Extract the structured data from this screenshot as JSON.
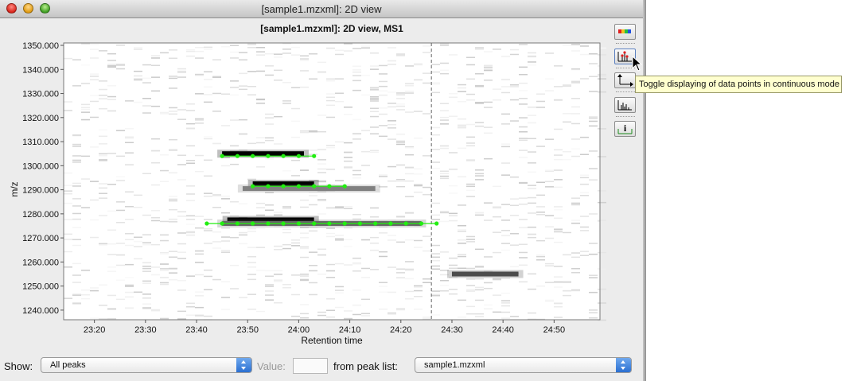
{
  "window": {
    "title": "[sample1.mzxml]: 2D view",
    "controls": [
      "close",
      "minimize",
      "zoom"
    ]
  },
  "plot": {
    "title": "[sample1.mzxml]: 2D view, MS1",
    "xlabel": "Retention time",
    "ylabel": "m/z",
    "y_ticks": [
      "1350.000",
      "1340.000",
      "1330.000",
      "1320.000",
      "1310.000",
      "1300.000",
      "1290.000",
      "1280.000",
      "1270.000",
      "1260.000",
      "1250.000",
      "1240.000"
    ],
    "x_ticks": [
      "23:20",
      "23:30",
      "23:40",
      "23:50",
      "24:00",
      "24:10",
      "24:20",
      "24:30",
      "24:40",
      "24:50"
    ],
    "cursor_time": "24:26",
    "peak_color": "#22ee11"
  },
  "chart_data": {
    "type": "heatmap",
    "title": "[sample1.mzxml]: 2D view, MS1",
    "xlabel": "Retention time",
    "ylabel": "m/z",
    "x_unit": "minutes",
    "xlim": [
      23.233,
      24.983
    ],
    "ylim": [
      1236,
      1351
    ],
    "grid": false,
    "vertical_marker": 24.433,
    "dense_bands": [
      {
        "mz": 1305.0,
        "rt_start": 23.75,
        "rt_end": 24.017,
        "intensity": 1.0
      },
      {
        "mz": 1292.5,
        "rt_start": 23.85,
        "rt_end": 24.05,
        "intensity": 1.0
      },
      {
        "mz": 1290.5,
        "rt_start": 23.817,
        "rt_end": 24.25,
        "intensity": 0.5
      },
      {
        "mz": 1277.5,
        "rt_start": 23.767,
        "rt_end": 24.05,
        "intensity": 1.0
      },
      {
        "mz": 1276.0,
        "rt_start": 23.75,
        "rt_end": 24.4,
        "intensity": 0.6
      },
      {
        "mz": 1255.0,
        "rt_start": 24.5,
        "rt_end": 24.717,
        "intensity": 0.7
      }
    ],
    "series": [
      {
        "mz": 1304.0,
        "points": [
          [
            23.75,
            1304
          ],
          [
            23.8,
            1304
          ],
          [
            23.85,
            1304
          ],
          [
            23.9,
            1304
          ],
          [
            23.95,
            1304
          ],
          [
            24.0,
            1304
          ],
          [
            24.05,
            1304
          ]
        ]
      },
      {
        "mz": 1291.5,
        "points": [
          [
            23.85,
            1291.5
          ],
          [
            23.9,
            1291.5
          ],
          [
            23.95,
            1291.5
          ],
          [
            24.0,
            1291.5
          ],
          [
            24.05,
            1291.5
          ],
          [
            24.1,
            1291.5
          ],
          [
            24.15,
            1291.5
          ]
        ]
      },
      {
        "mz": 1276.0,
        "points": [
          [
            23.7,
            1276
          ],
          [
            23.75,
            1276
          ],
          [
            23.8,
            1276
          ],
          [
            23.85,
            1276
          ],
          [
            23.9,
            1276
          ],
          [
            23.95,
            1276
          ],
          [
            24.0,
            1276
          ],
          [
            24.05,
            1276
          ],
          [
            24.1,
            1276
          ],
          [
            24.15,
            1276
          ],
          [
            24.2,
            1276
          ],
          [
            24.25,
            1276
          ],
          [
            24.3,
            1276
          ],
          [
            24.35,
            1276
          ],
          [
            24.4,
            1276
          ],
          [
            24.45,
            1276
          ]
        ]
      }
    ]
  },
  "toolbar": {
    "buttons": [
      {
        "icon": "color-palette-icon"
      },
      {
        "icon": "data-points-icon"
      },
      {
        "icon": "axes-icon"
      },
      {
        "icon": "spectrum-icon"
      },
      {
        "icon": "info-icon"
      }
    ],
    "tooltip": "Toggle displaying of data points in continuous mode"
  },
  "controls": {
    "show_label": "Show:",
    "show_value": "All peaks",
    "value_label": "Value:",
    "value_input": "",
    "peaklist_label": "from peak list:",
    "peaklist_value": "sample1.mzxml"
  }
}
